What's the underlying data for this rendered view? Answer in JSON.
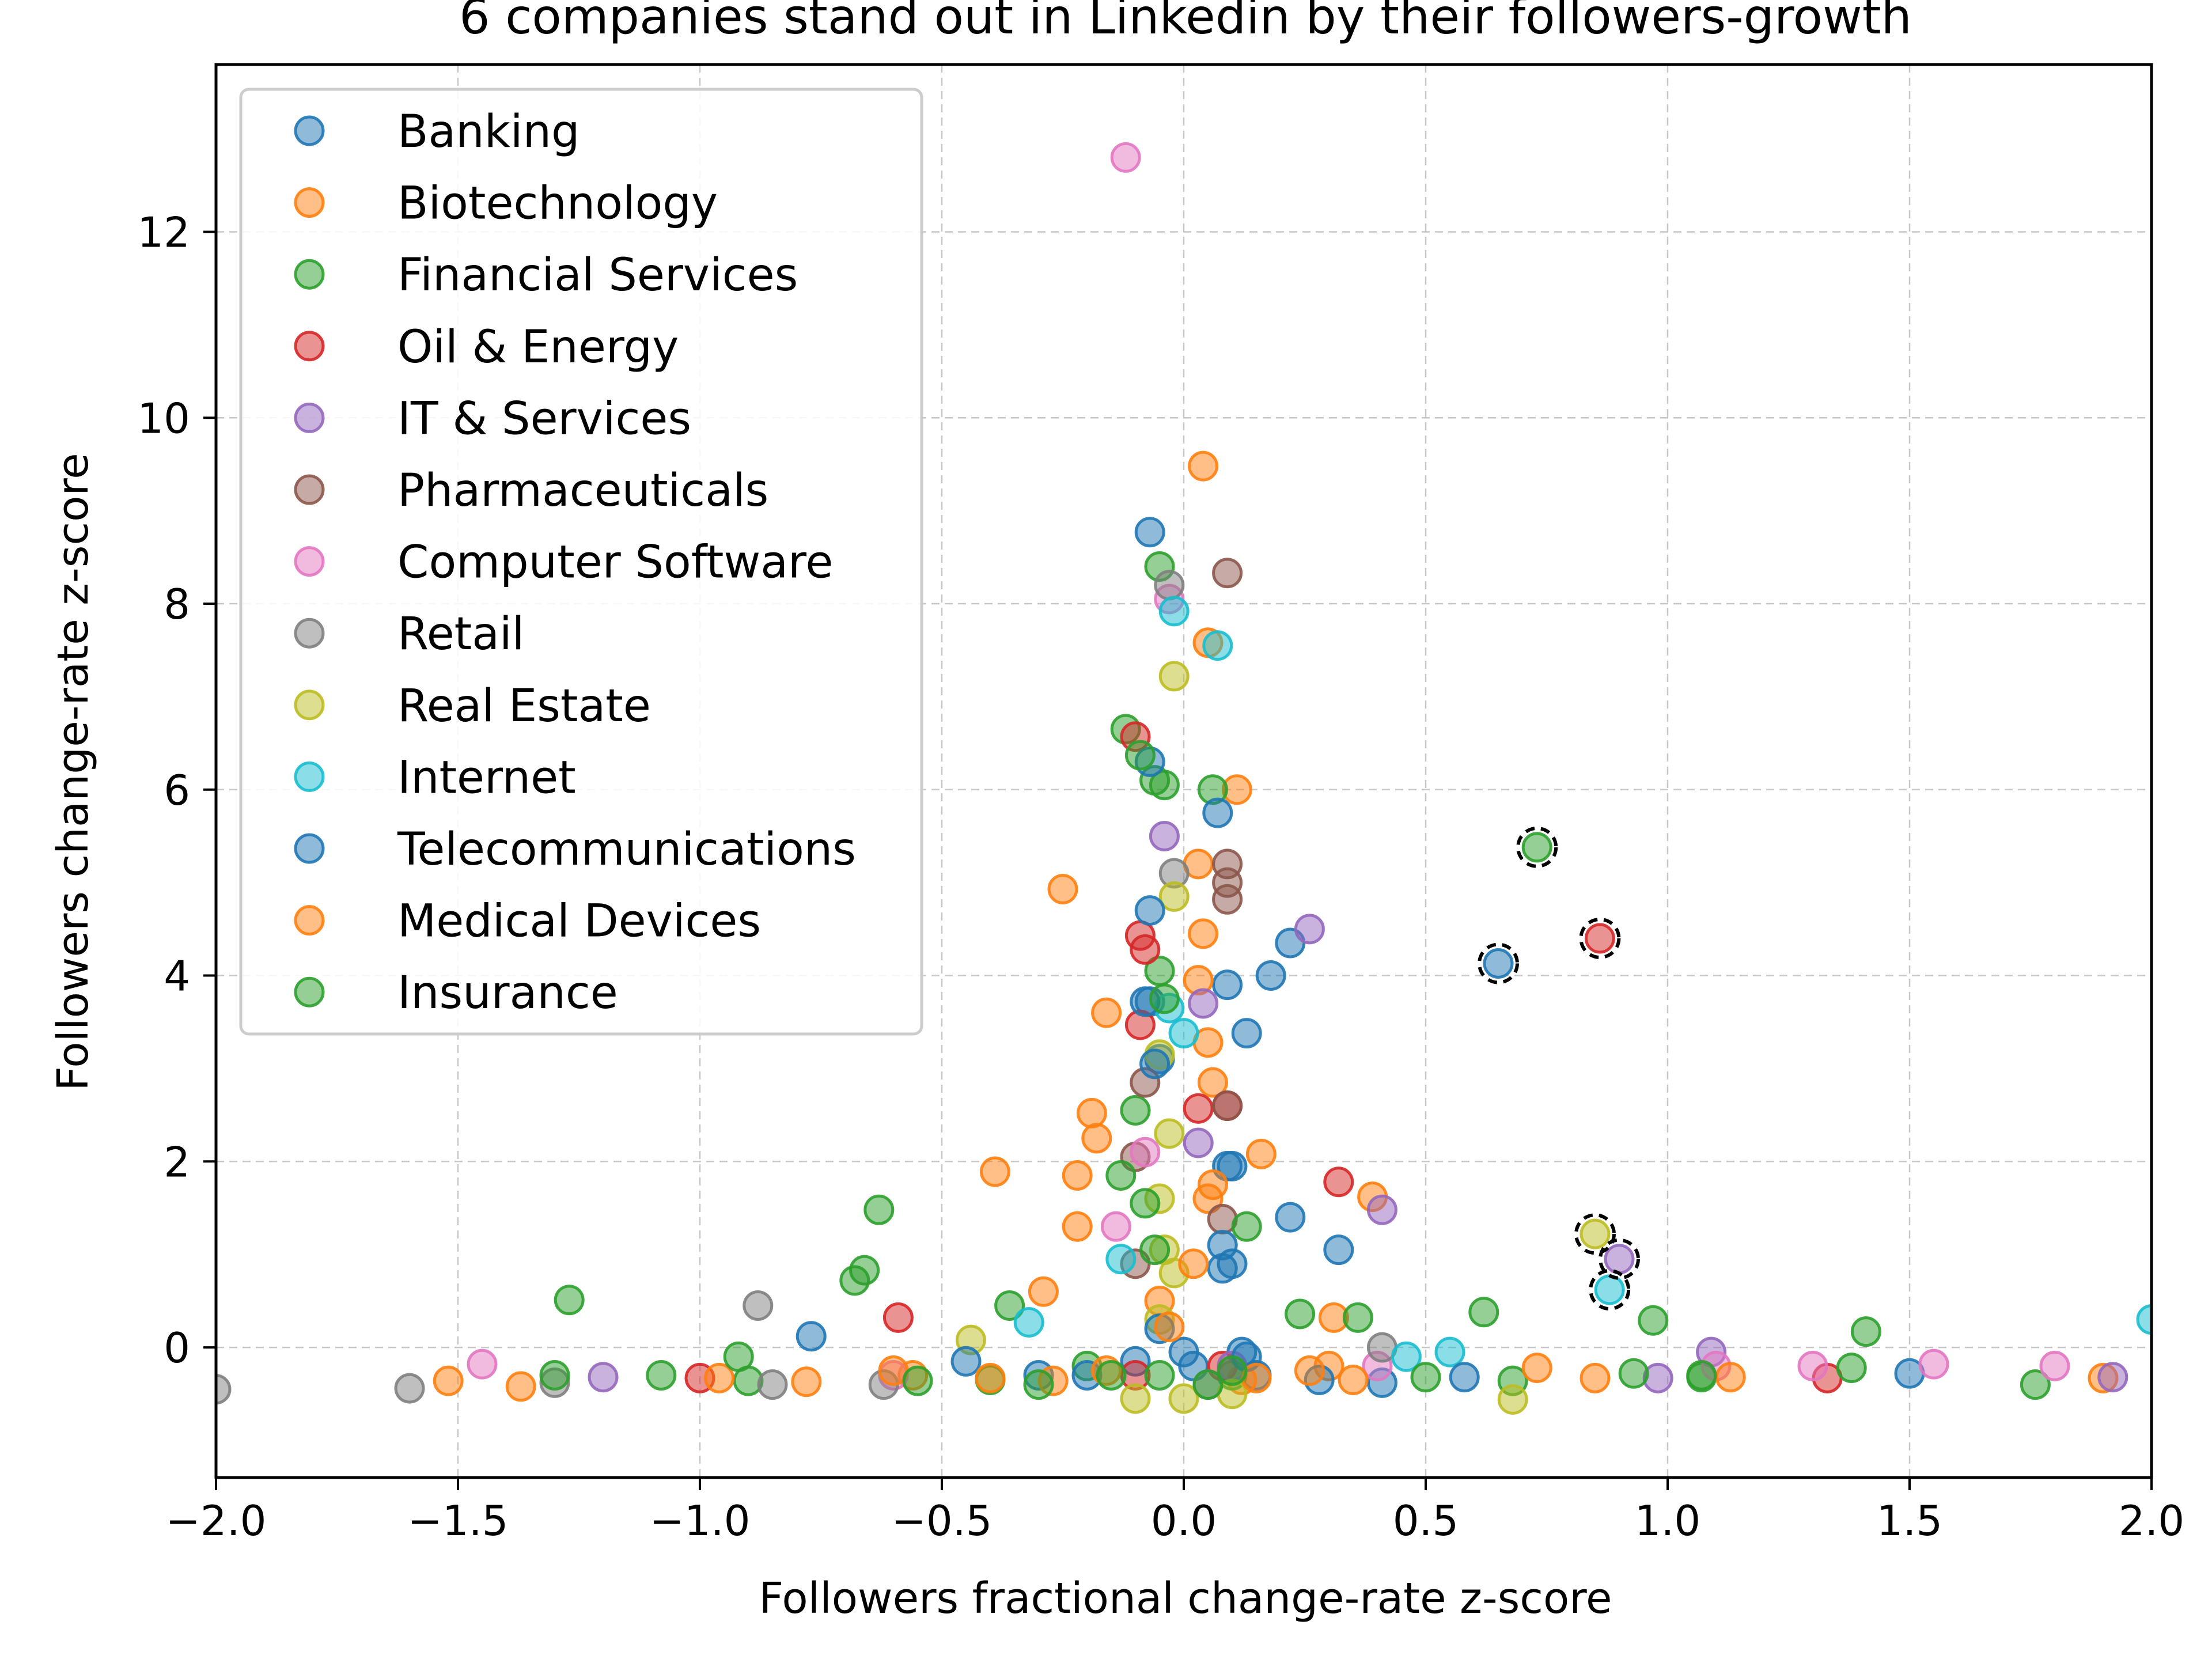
{
  "chart_data": {
    "type": "scatter",
    "title": "6 companies stand out in Linkedin by their followers-growth",
    "xlabel": "Followers fractional change-rate z-score",
    "ylabel": "Followers change-rate z-score",
    "xlim": [
      -2.0,
      2.0
    ],
    "ylim": [
      -1.4,
      13.8
    ],
    "xticks": [
      -2.0,
      -1.5,
      -1.0,
      -0.5,
      0.0,
      0.5,
      1.0,
      1.5,
      2.0
    ],
    "xtick_labels": [
      "−2.0",
      "−1.5",
      "−1.0",
      "−0.5",
      "0.0",
      "0.5",
      "1.0",
      "1.5",
      "2.0"
    ],
    "yticks": [
      0,
      2,
      4,
      6,
      8,
      10,
      12
    ],
    "ytick_labels": [
      "0",
      "2",
      "4",
      "6",
      "8",
      "10",
      "12"
    ],
    "grid": true,
    "legend_position": "top-left",
    "series": [
      {
        "name": "Banking",
        "color": "#1f77b4",
        "points": [
          [
            -0.07,
            8.77
          ],
          [
            0.65,
            4.13
          ],
          [
            0.22,
            4.35
          ],
          [
            0.18,
            4.0
          ],
          [
            0.09,
            3.9
          ],
          [
            0.13,
            3.38
          ],
          [
            -0.07,
            3.72
          ],
          [
            -0.05,
            3.1
          ],
          [
            0.22,
            1.4
          ],
          [
            0.32,
            1.05
          ],
          [
            0.1,
            1.95
          ],
          [
            0.08,
            0.85
          ],
          [
            -0.77,
            0.12
          ],
          [
            0.41,
            -0.38
          ],
          [
            1.5,
            -0.28
          ],
          [
            0.12,
            -0.05
          ],
          [
            -0.3,
            -0.3
          ],
          [
            0.02,
            -0.2
          ],
          [
            -0.1,
            -0.15
          ],
          [
            0.15,
            -0.3
          ]
        ]
      },
      {
        "name": "Biotechnology",
        "color": "#ff7f0e",
        "points": [
          [
            0.04,
            9.48
          ],
          [
            0.05,
            7.58
          ],
          [
            0.11,
            6.0
          ],
          [
            0.03,
            5.2
          ],
          [
            -0.25,
            4.93
          ],
          [
            0.04,
            4.45
          ],
          [
            -0.16,
            3.6
          ],
          [
            0.03,
            3.95
          ],
          [
            0.05,
            3.28
          ],
          [
            0.06,
            2.85
          ],
          [
            -0.19,
            2.52
          ],
          [
            -0.18,
            2.25
          ],
          [
            0.16,
            2.08
          ],
          [
            -0.39,
            1.89
          ],
          [
            -0.22,
            1.85
          ],
          [
            0.39,
            1.62
          ],
          [
            0.05,
            1.6
          ],
          [
            -0.22,
            1.3
          ],
          [
            -0.29,
            0.6
          ],
          [
            0.31,
            0.32
          ],
          [
            -1.52,
            -0.36
          ],
          [
            -1.37,
            -0.42
          ],
          [
            0.85,
            -0.33
          ],
          [
            1.9,
            -0.33
          ],
          [
            -0.56,
            -0.3
          ],
          [
            0.3,
            -0.2
          ],
          [
            -0.05,
            0.5
          ],
          [
            0.12,
            -0.35
          ]
        ]
      },
      {
        "name": "Financial Services",
        "color": "#2ca02c",
        "points": [
          [
            -0.05,
            8.4
          ],
          [
            -0.12,
            6.65
          ],
          [
            -0.04,
            6.05
          ],
          [
            0.06,
            6.0
          ],
          [
            -0.06,
            6.1
          ],
          [
            -0.05,
            4.05
          ],
          [
            -0.1,
            2.55
          ],
          [
            -0.63,
            1.48
          ],
          [
            -0.66,
            0.83
          ],
          [
            -1.27,
            0.51
          ],
          [
            -0.36,
            0.45
          ],
          [
            0.24,
            0.36
          ],
          [
            0.36,
            0.32
          ],
          [
            0.62,
            0.38
          ],
          [
            0.97,
            0.29
          ],
          [
            1.41,
            0.17
          ],
          [
            -1.08,
            -0.3
          ],
          [
            -0.9,
            -0.36
          ],
          [
            0.68,
            -0.36
          ],
          [
            1.76,
            -0.4
          ],
          [
            -0.2,
            -0.2
          ],
          [
            0.1,
            -0.3
          ],
          [
            -0.4,
            -0.35
          ],
          [
            1.07,
            -0.32
          ]
        ]
      },
      {
        "name": "Oil & Energy",
        "color": "#d62728",
        "points": [
          [
            0.86,
            4.4
          ],
          [
            -0.1,
            6.57
          ],
          [
            -0.09,
            4.43
          ],
          [
            -0.08,
            4.28
          ],
          [
            -0.09,
            3.47
          ],
          [
            0.03,
            2.57
          ],
          [
            0.09,
            2.6
          ],
          [
            0.32,
            1.78
          ],
          [
            -0.59,
            0.32
          ],
          [
            -1.0,
            -0.33
          ],
          [
            1.33,
            -0.33
          ],
          [
            0.08,
            -0.2
          ],
          [
            -0.1,
            -0.3
          ]
        ]
      },
      {
        "name": "IT & Services",
        "color": "#9467bd",
        "points": [
          [
            0.9,
            0.95
          ],
          [
            -0.04,
            5.5
          ],
          [
            0.26,
            4.5
          ],
          [
            0.04,
            3.7
          ],
          [
            0.03,
            2.2
          ],
          [
            0.41,
            1.48
          ],
          [
            1.09,
            -0.05
          ],
          [
            0.98,
            -0.33
          ],
          [
            1.92,
            -0.32
          ],
          [
            -1.2,
            -0.32
          ],
          [
            0.1,
            -0.2
          ]
        ]
      },
      {
        "name": "Pharmaceuticals",
        "color": "#8c564b",
        "points": [
          [
            0.09,
            8.33
          ],
          [
            0.09,
            5.2
          ],
          [
            0.09,
            5.0
          ],
          [
            0.09,
            4.82
          ],
          [
            0.09,
            2.6
          ],
          [
            -0.1,
            2.05
          ],
          [
            -0.08,
            2.85
          ],
          [
            0.08,
            1.38
          ],
          [
            -0.1,
            0.9
          ]
        ]
      },
      {
        "name": "Computer Software",
        "color": "#e377c2",
        "points": [
          [
            -0.12,
            12.8
          ],
          [
            -0.03,
            8.05
          ],
          [
            -0.08,
            2.1
          ],
          [
            -0.14,
            1.3
          ],
          [
            -1.45,
            -0.18
          ],
          [
            1.8,
            -0.2
          ],
          [
            1.55,
            -0.18
          ],
          [
            1.3,
            -0.2
          ],
          [
            0.4,
            -0.2
          ],
          [
            -0.6,
            -0.3
          ],
          [
            1.1,
            -0.2
          ]
        ]
      },
      {
        "name": "Retail",
        "color": "#7f7f7f",
        "points": [
          [
            -0.03,
            8.2
          ],
          [
            -0.02,
            5.1
          ],
          [
            -0.88,
            0.45
          ],
          [
            -2.0,
            -0.45
          ],
          [
            -1.6,
            -0.44
          ],
          [
            -1.3,
            -0.38
          ],
          [
            -0.62,
            -0.4
          ],
          [
            0.41,
            0.0
          ],
          [
            0.05,
            -0.4
          ],
          [
            -0.85,
            -0.4
          ]
        ]
      },
      {
        "name": "Real Estate",
        "color": "#bcbd22",
        "points": [
          [
            0.85,
            1.22
          ],
          [
            -0.02,
            7.22
          ],
          [
            -0.02,
            4.85
          ],
          [
            -0.05,
            3.15
          ],
          [
            -0.03,
            2.3
          ],
          [
            -0.05,
            1.6
          ],
          [
            -0.04,
            1.05
          ],
          [
            -0.02,
            0.8
          ],
          [
            0.68,
            -0.56
          ],
          [
            -0.1,
            -0.55
          ],
          [
            0.0,
            -0.55
          ],
          [
            0.1,
            -0.5
          ],
          [
            -0.44,
            0.08
          ],
          [
            -0.05,
            0.3
          ]
        ]
      },
      {
        "name": "Internet",
        "color": "#17becf",
        "points": [
          [
            0.88,
            0.62
          ],
          [
            -0.02,
            7.92
          ],
          [
            0.07,
            7.55
          ],
          [
            0.0,
            3.38
          ],
          [
            -0.03,
            3.65
          ],
          [
            2.0,
            0.3
          ],
          [
            0.55,
            -0.05
          ],
          [
            -0.13,
            0.95
          ],
          [
            0.46,
            -0.1
          ],
          [
            -0.32,
            0.27
          ]
        ]
      },
      {
        "name": "Telecommunications",
        "color": "#1f77b4",
        "points": [
          [
            -0.07,
            6.3
          ],
          [
            0.07,
            5.75
          ],
          [
            -0.07,
            4.7
          ],
          [
            -0.08,
            3.72
          ],
          [
            -0.06,
            3.05
          ],
          [
            0.09,
            1.95
          ],
          [
            0.08,
            1.1
          ],
          [
            0.1,
            0.9
          ],
          [
            -0.05,
            0.2
          ],
          [
            0.13,
            -0.1
          ],
          [
            0.28,
            -0.35
          ],
          [
            -0.2,
            -0.3
          ],
          [
            0.58,
            -0.32
          ],
          [
            -0.45,
            -0.15
          ],
          [
            0.0,
            -0.05
          ]
        ]
      },
      {
        "name": "Medical Devices",
        "color": "#ff7f0e",
        "points": [
          [
            -0.27,
            -0.36
          ],
          [
            0.35,
            -0.35
          ],
          [
            0.73,
            -0.22
          ],
          [
            -0.78,
            -0.37
          ],
          [
            1.13,
            -0.32
          ],
          [
            -0.96,
            -0.33
          ],
          [
            0.06,
            1.75
          ],
          [
            0.02,
            0.9
          ],
          [
            -0.03,
            0.22
          ],
          [
            -0.6,
            -0.25
          ],
          [
            -0.16,
            -0.25
          ],
          [
            0.26,
            -0.25
          ],
          [
            -0.4,
            -0.33
          ],
          [
            0.15,
            -0.33
          ]
        ]
      },
      {
        "name": "Insurance",
        "color": "#2ca02c",
        "points": [
          [
            0.73,
            5.38
          ],
          [
            -0.09,
            6.37
          ],
          [
            -0.04,
            3.75
          ],
          [
            0.13,
            1.3
          ],
          [
            -0.13,
            1.85
          ],
          [
            -0.08,
            1.55
          ],
          [
            -0.06,
            1.05
          ],
          [
            -0.68,
            0.72
          ],
          [
            1.38,
            -0.22
          ],
          [
            -0.92,
            -0.1
          ],
          [
            -1.3,
            -0.3
          ],
          [
            1.07,
            -0.3
          ],
          [
            0.93,
            -0.28
          ],
          [
            -0.05,
            -0.3
          ],
          [
            -0.55,
            -0.36
          ],
          [
            0.5,
            -0.32
          ],
          [
            0.05,
            -0.4
          ],
          [
            -0.15,
            -0.3
          ],
          [
            0.1,
            -0.25
          ],
          [
            -0.3,
            -0.4
          ]
        ]
      }
    ],
    "highlighted": [
      [
        0.73,
        5.38
      ],
      [
        0.86,
        4.4
      ],
      [
        0.65,
        4.13
      ],
      [
        0.85,
        1.22
      ],
      [
        0.9,
        0.95
      ],
      [
        0.88,
        0.62
      ]
    ]
  }
}
